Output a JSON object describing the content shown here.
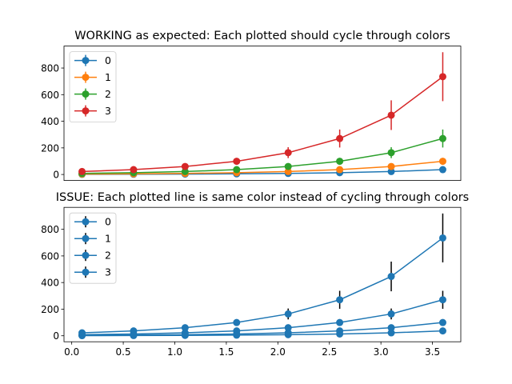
{
  "chart_data": [
    {
      "type": "line",
      "title": "WORKING as expected: Each plotted should cycle through colors",
      "x": [
        0.1,
        0.6,
        1.1,
        1.6,
        2.1,
        2.6,
        3.1,
        3.6
      ],
      "xlim": [
        -0.075,
        3.775
      ],
      "ylim": [
        -45,
        965
      ],
      "xticks": [],
      "yticks": [
        0,
        200,
        400,
        600,
        800
      ],
      "error_bar_color": "series",
      "legend_position": "upper-left",
      "series": [
        {
          "name": "0",
          "color": "#1f77b4",
          "values": [
            1.11,
            1.82,
            3.0,
            4.95,
            8.17,
            13.46,
            22.2,
            36.6
          ],
          "yerr": [
            0.28,
            0.46,
            0.75,
            1.24,
            2.04,
            3.37,
            5.55,
            9.15
          ]
        },
        {
          "name": "1",
          "color": "#ff7f0e",
          "values": [
            3.0,
            4.95,
            8.17,
            13.46,
            22.2,
            36.6,
            60.34,
            99.48
          ],
          "yerr": [
            0.75,
            1.24,
            2.04,
            3.37,
            5.55,
            9.15,
            15.09,
            24.87
          ]
        },
        {
          "name": "2",
          "color": "#2ca02c",
          "values": [
            8.17,
            13.46,
            22.2,
            36.6,
            60.34,
            99.48,
            164.02,
            270.43
          ],
          "yerr": [
            2.04,
            3.37,
            5.55,
            9.15,
            15.09,
            24.87,
            41.0,
            67.6
          ]
        },
        {
          "name": "3",
          "color": "#d62728",
          "values": [
            22.2,
            36.6,
            60.34,
            99.48,
            164.02,
            270.43,
            445.86,
            735.1
          ],
          "yerr": [
            5.55,
            9.15,
            15.09,
            24.87,
            41.0,
            67.6,
            111.5,
            183.8
          ]
        }
      ]
    },
    {
      "type": "line",
      "title": "ISSUE: Each plotted line is same color instead of cycling through colors",
      "x": [
        0.1,
        0.6,
        1.1,
        1.6,
        2.1,
        2.6,
        3.1,
        3.6
      ],
      "xlim": [
        -0.075,
        3.775
      ],
      "ylim": [
        -45,
        965
      ],
      "xticks": [
        "0.0",
        "0.5",
        "1.0",
        "1.5",
        "2.0",
        "2.5",
        "3.0",
        "3.5"
      ],
      "yticks": [
        0,
        200,
        400,
        600,
        800
      ],
      "error_bar_color": "#000000",
      "legend_position": "upper-left",
      "series": [
        {
          "name": "0",
          "color": "#1f77b4",
          "values": [
            1.11,
            1.82,
            3.0,
            4.95,
            8.17,
            13.46,
            22.2,
            36.6
          ],
          "yerr": [
            0.28,
            0.46,
            0.75,
            1.24,
            2.04,
            3.37,
            5.55,
            9.15
          ]
        },
        {
          "name": "1",
          "color": "#1f77b4",
          "values": [
            3.0,
            4.95,
            8.17,
            13.46,
            22.2,
            36.6,
            60.34,
            99.48
          ],
          "yerr": [
            0.75,
            1.24,
            2.04,
            3.37,
            5.55,
            9.15,
            15.09,
            24.87
          ]
        },
        {
          "name": "2",
          "color": "#1f77b4",
          "values": [
            8.17,
            13.46,
            22.2,
            36.6,
            60.34,
            99.48,
            164.02,
            270.43
          ],
          "yerr": [
            2.04,
            3.37,
            5.55,
            9.15,
            15.09,
            24.87,
            41.0,
            67.6
          ]
        },
        {
          "name": "3",
          "color": "#1f77b4",
          "values": [
            22.2,
            36.6,
            60.34,
            99.48,
            164.02,
            270.43,
            445.86,
            735.1
          ],
          "yerr": [
            5.55,
            9.15,
            15.09,
            24.87,
            41.0,
            67.6,
            111.5,
            183.8
          ]
        }
      ]
    }
  ]
}
